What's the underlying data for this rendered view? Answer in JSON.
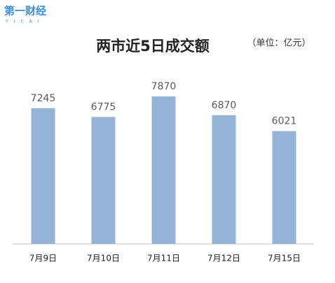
{
  "logo": {
    "name": "第一财经",
    "sub": "YICAI"
  },
  "chart_data": {
    "type": "bar",
    "title": "两市近5日成交额",
    "subtitle": "（单位：亿元）",
    "categories": [
      "7月9日",
      "7月10日",
      "7月11日",
      "7月12日",
      "7月15日"
    ],
    "values": [
      7245,
      6775,
      7870,
      6870,
      6021
    ],
    "color": "#95b3d7"
  }
}
